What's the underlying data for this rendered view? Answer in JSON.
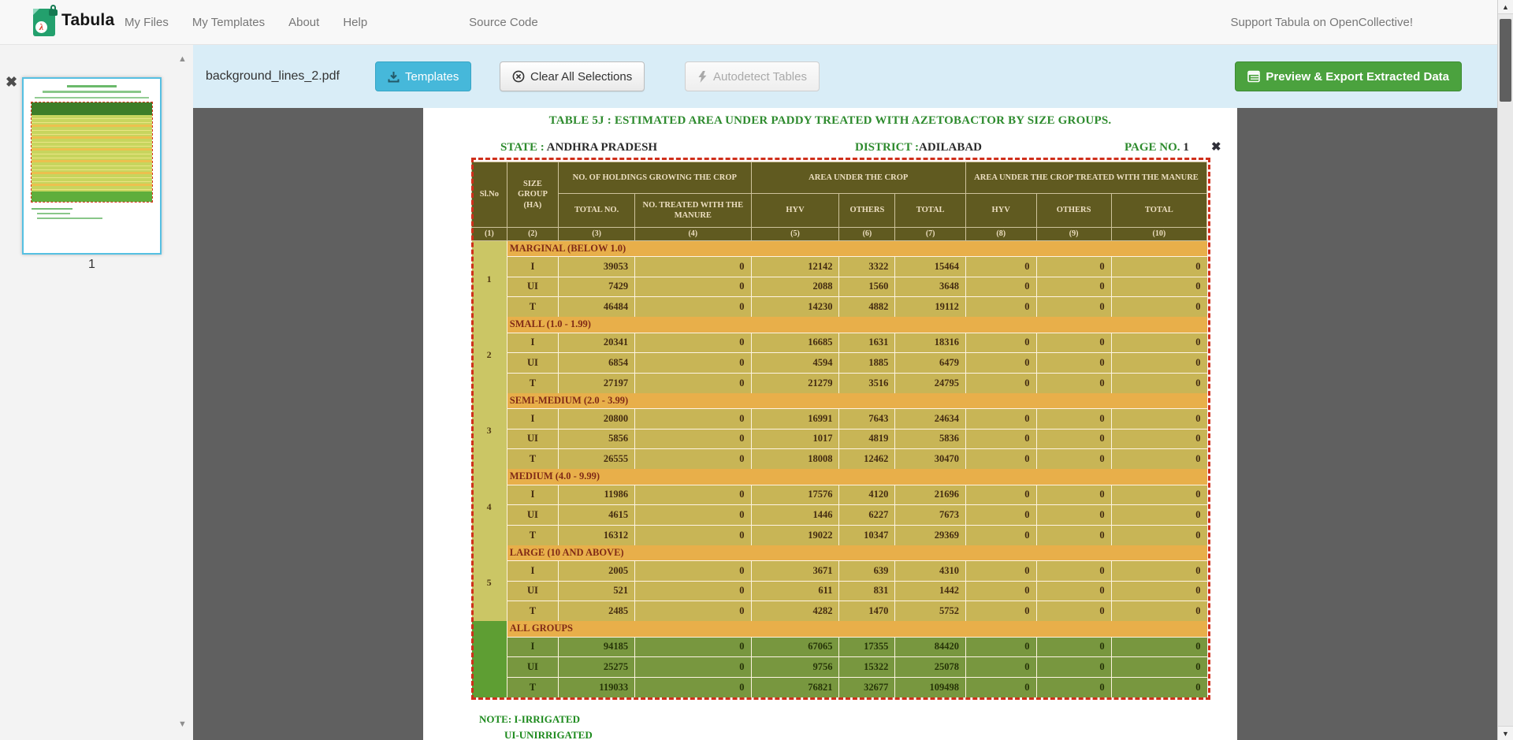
{
  "navbar": {
    "brand": "Tabula",
    "items": [
      "My Files",
      "My Templates",
      "About",
      "Help",
      "Source Code"
    ],
    "support_link": "Support Tabula on OpenCollective!"
  },
  "toolbar": {
    "filename": "background_lines_2.pdf",
    "templates_label": "Templates",
    "clear_label": "Clear All Selections",
    "autodetect_label": "Autodetect Tables",
    "export_label": "Preview & Export Extracted Data"
  },
  "sidebar": {
    "page_number": "1"
  },
  "document": {
    "title": "TABLE 5J : ESTIMATED AREA UNDER PADDY  TREATED WITH AZETOBACTOR BY SIZE GROUPS.",
    "state_label": "STATE :",
    "state_value": "ANDHRA PRADESH",
    "district_label": "DISTRICT :",
    "district_value": "ADILABAD",
    "page_label": "PAGE NO.",
    "page_value": "1",
    "note_line1": "NOTE: I-IRRIGATED",
    "note_line2": "UI-UNIRRIGATED"
  },
  "table": {
    "header": {
      "slno": "Sl.No",
      "size_group": "SIZE GROUP (HA)",
      "holdings": "NO. OF HOLDINGS GROWING THE CROP",
      "area": "AREA UNDER THE CROP",
      "treated": "AREA UNDER THE CROP TREATED WITH THE MANURE",
      "sub": [
        "TOTAL NO.",
        "NO. TREATED WITH THE MANURE",
        "HYV",
        "OTHERS",
        "TOTAL",
        "HYV",
        "OTHERS",
        "TOTAL"
      ],
      "col_numbers": [
        "(1)",
        "(2)",
        "(3)",
        "(4)",
        "(5)",
        "(6)",
        "(7)",
        "(8)",
        "(9)",
        "(10)"
      ]
    },
    "groups": [
      {
        "sl": "1",
        "label": "MARGINAL (BELOW 1.0)",
        "all_groups": false,
        "rows": [
          [
            "I",
            39053,
            0,
            12142,
            3322,
            15464,
            0,
            0,
            0
          ],
          [
            "UI",
            7429,
            0,
            2088,
            1560,
            3648,
            0,
            0,
            0
          ],
          [
            "T",
            46484,
            0,
            14230,
            4882,
            19112,
            0,
            0,
            0
          ]
        ]
      },
      {
        "sl": "2",
        "label": "SMALL (1.0 - 1.99)",
        "all_groups": false,
        "rows": [
          [
            "I",
            20341,
            0,
            16685,
            1631,
            18316,
            0,
            0,
            0
          ],
          [
            "UI",
            6854,
            0,
            4594,
            1885,
            6479,
            0,
            0,
            0
          ],
          [
            "T",
            27197,
            0,
            21279,
            3516,
            24795,
            0,
            0,
            0
          ]
        ]
      },
      {
        "sl": "3",
        "label": "SEMI-MEDIUM (2.0 - 3.99)",
        "all_groups": false,
        "rows": [
          [
            "I",
            20800,
            0,
            16991,
            7643,
            24634,
            0,
            0,
            0
          ],
          [
            "UI",
            5856,
            0,
            1017,
            4819,
            5836,
            0,
            0,
            0
          ],
          [
            "T",
            26555,
            0,
            18008,
            12462,
            30470,
            0,
            0,
            0
          ]
        ]
      },
      {
        "sl": "4",
        "label": "MEDIUM (4.0 - 9.99)",
        "all_groups": false,
        "rows": [
          [
            "I",
            11986,
            0,
            17576,
            4120,
            21696,
            0,
            0,
            0
          ],
          [
            "UI",
            4615,
            0,
            1446,
            6227,
            7673,
            0,
            0,
            0
          ],
          [
            "T",
            16312,
            0,
            19022,
            10347,
            29369,
            0,
            0,
            0
          ]
        ]
      },
      {
        "sl": "5",
        "label": "LARGE (10 AND ABOVE)",
        "all_groups": false,
        "rows": [
          [
            "I",
            2005,
            0,
            3671,
            639,
            4310,
            0,
            0,
            0
          ],
          [
            "UI",
            521,
            0,
            611,
            831,
            1442,
            0,
            0,
            0
          ],
          [
            "T",
            2485,
            0,
            4282,
            1470,
            5752,
            0,
            0,
            0
          ]
        ]
      },
      {
        "sl": "",
        "label": "ALL GROUPS",
        "all_groups": true,
        "rows": [
          [
            "I",
            94185,
            0,
            67065,
            17355,
            84420,
            0,
            0,
            0
          ],
          [
            "UI",
            25275,
            0,
            9756,
            15322,
            25078,
            0,
            0,
            0
          ],
          [
            "T",
            119033,
            0,
            76821,
            32677,
            109498,
            0,
            0,
            0
          ]
        ]
      }
    ]
  },
  "icons": {
    "brand": "pdf-lock-logo-icon",
    "templates": "import-tray-icon",
    "clear": "circle-x-icon",
    "autodetect": "lightning-bolt-icon",
    "export": "table-list-icon",
    "selection_close": "x-icon",
    "thumbnail_close": "x-icon",
    "scroll_up": "triangle-up-icon",
    "scroll_down": "triangle-down-icon"
  },
  "colors": {
    "toolbar_bg": "#d9edf7",
    "templates_button": "#46b8da",
    "export_button": "#4ba23e",
    "selection_border": "#cf2f1b",
    "table_header_bg": "#5a5c20",
    "group_label_bg": "#e8b54b",
    "data_row_bg": "#c6bb58",
    "all_groups_row_bg": "#739c40",
    "doc_green_text": "#2e8b2e"
  }
}
